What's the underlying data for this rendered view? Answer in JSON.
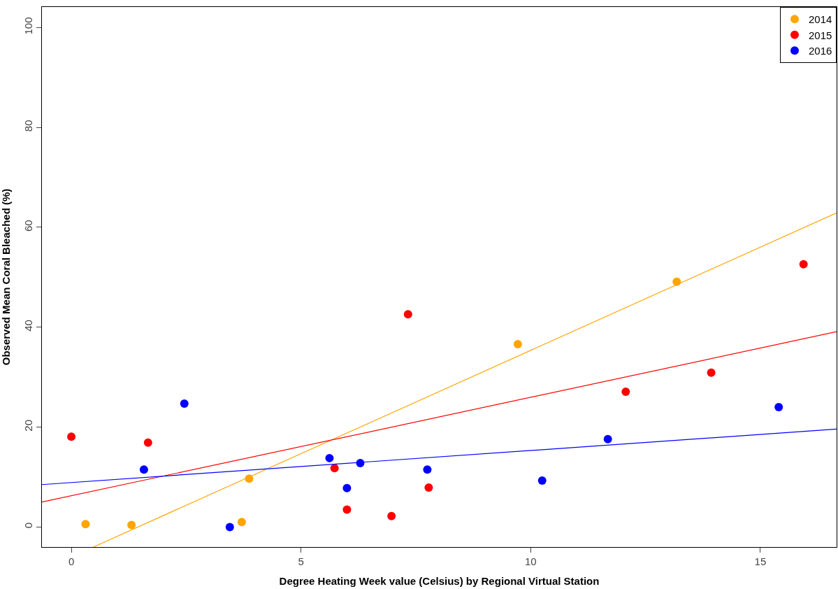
{
  "chart_data": {
    "type": "scatter",
    "xlabel": "Degree Heating Week value (Celsius) by Regional Virtual Station",
    "ylabel": "Observed Mean Coral Bleached (%)",
    "xlim": [
      -0.64,
      16.66
    ],
    "ylim": [
      -4,
      104.1
    ],
    "xticks": [
      0,
      5,
      10,
      15
    ],
    "yticks": [
      0,
      20,
      40,
      60,
      80,
      100
    ],
    "legend": "top right",
    "marker": "circle",
    "series": [
      {
        "name": "2014",
        "color": "#ffa500",
        "x": [
          0.31,
          1.31,
          3.71,
          3.87,
          9.72,
          13.18
        ],
        "values": [
          0.6,
          0.4,
          1.0,
          9.7,
          36.6,
          49.1
        ]
      },
      {
        "name": "2015",
        "color": "#ff0000",
        "x": [
          0,
          1.67,
          5.73,
          6.0,
          6.97,
          7.33,
          7.78,
          12.07,
          13.93,
          15.94
        ],
        "values": [
          18.1,
          16.9,
          11.8,
          3.5,
          2.2,
          42.6,
          7.9,
          27.1,
          30.9,
          52.6
        ]
      },
      {
        "name": "2016",
        "color": "#0000ff",
        "x": [
          1.58,
          2.46,
          3.45,
          5.62,
          6.0,
          6.29,
          7.75,
          10.25,
          11.68,
          15.4
        ],
        "values": [
          11.5,
          24.7,
          0,
          13.8,
          7.8,
          12.8,
          11.5,
          9.3,
          17.6,
          24.0
        ]
      },
      {
        "type": "line",
        "marker": "none",
        "color": "#ffa500",
        "x": [
          0.48,
          16.66
        ],
        "values": [
          -4,
          62.9
        ]
      },
      {
        "type": "line",
        "marker": "none",
        "color": "#ff0000",
        "x": [
          -0.64,
          16.66
        ],
        "values": [
          5.0,
          39.1
        ]
      },
      {
        "type": "line",
        "marker": "none",
        "color": "#0000ff",
        "x": [
          -0.64,
          16.66
        ],
        "values": [
          8.5,
          19.6
        ]
      }
    ]
  }
}
